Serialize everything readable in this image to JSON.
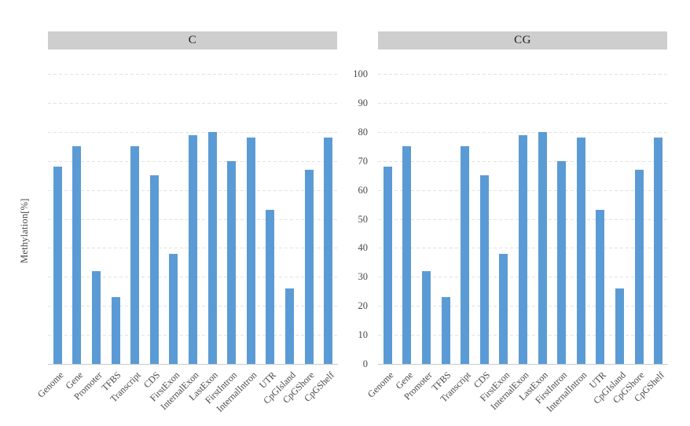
{
  "figure": {
    "y_axis_title": "Methylation[%]",
    "background_color": "#ffffff",
    "tick_text_color": "#4a4a4a",
    "title_band_color": "#cecece",
    "gridline_color": "#e2e2e2",
    "axis_line_color": "#c9c9c9"
  },
  "chart_data": [
    {
      "type": "bar",
      "title": "C",
      "categories": [
        "Genome",
        "Gene",
        "Promoter",
        "TFBS",
        "Transcript",
        "CDS",
        "FirstExon",
        "InternalExon",
        "LastExon",
        "FirstIntron",
        "InternalIntron",
        "UTR",
        "CpGIsland",
        "CpGShore",
        "CpGShelf"
      ],
      "values": [
        68,
        75,
        32,
        23,
        75,
        65,
        38,
        79,
        80,
        70,
        78,
        53,
        26,
        67,
        78
      ],
      "xlabel": "",
      "ylabel": "Methylation[%]",
      "ylim": [
        0,
        100
      ],
      "yticks": [
        0,
        10,
        20,
        30,
        40,
        50,
        60,
        70,
        80,
        90,
        100
      ],
      "grid": "horizontal-dashed",
      "legend": "none",
      "bar_color": "#5b9bd5"
    },
    {
      "type": "bar",
      "title": "CG",
      "categories": [
        "Genome",
        "Gene",
        "Promoter",
        "TFBS",
        "Transcript",
        "CDS",
        "FirstExon",
        "InternalExon",
        "LastExon",
        "FirstIntron",
        "InternalIntron",
        "UTR",
        "CpGIsland",
        "CpGShore",
        "CpGShelf"
      ],
      "values": [
        68,
        75,
        32,
        23,
        75,
        65,
        38,
        79,
        80,
        70,
        78,
        53,
        26,
        67,
        78
      ],
      "xlabel": "",
      "ylabel": "Methylation[%]",
      "ylim": [
        0,
        100
      ],
      "yticks": [
        0,
        10,
        20,
        30,
        40,
        50,
        60,
        70,
        80,
        90,
        100
      ],
      "grid": "horizontal-dashed",
      "legend": "none",
      "bar_color": "#5b9bd5"
    }
  ]
}
